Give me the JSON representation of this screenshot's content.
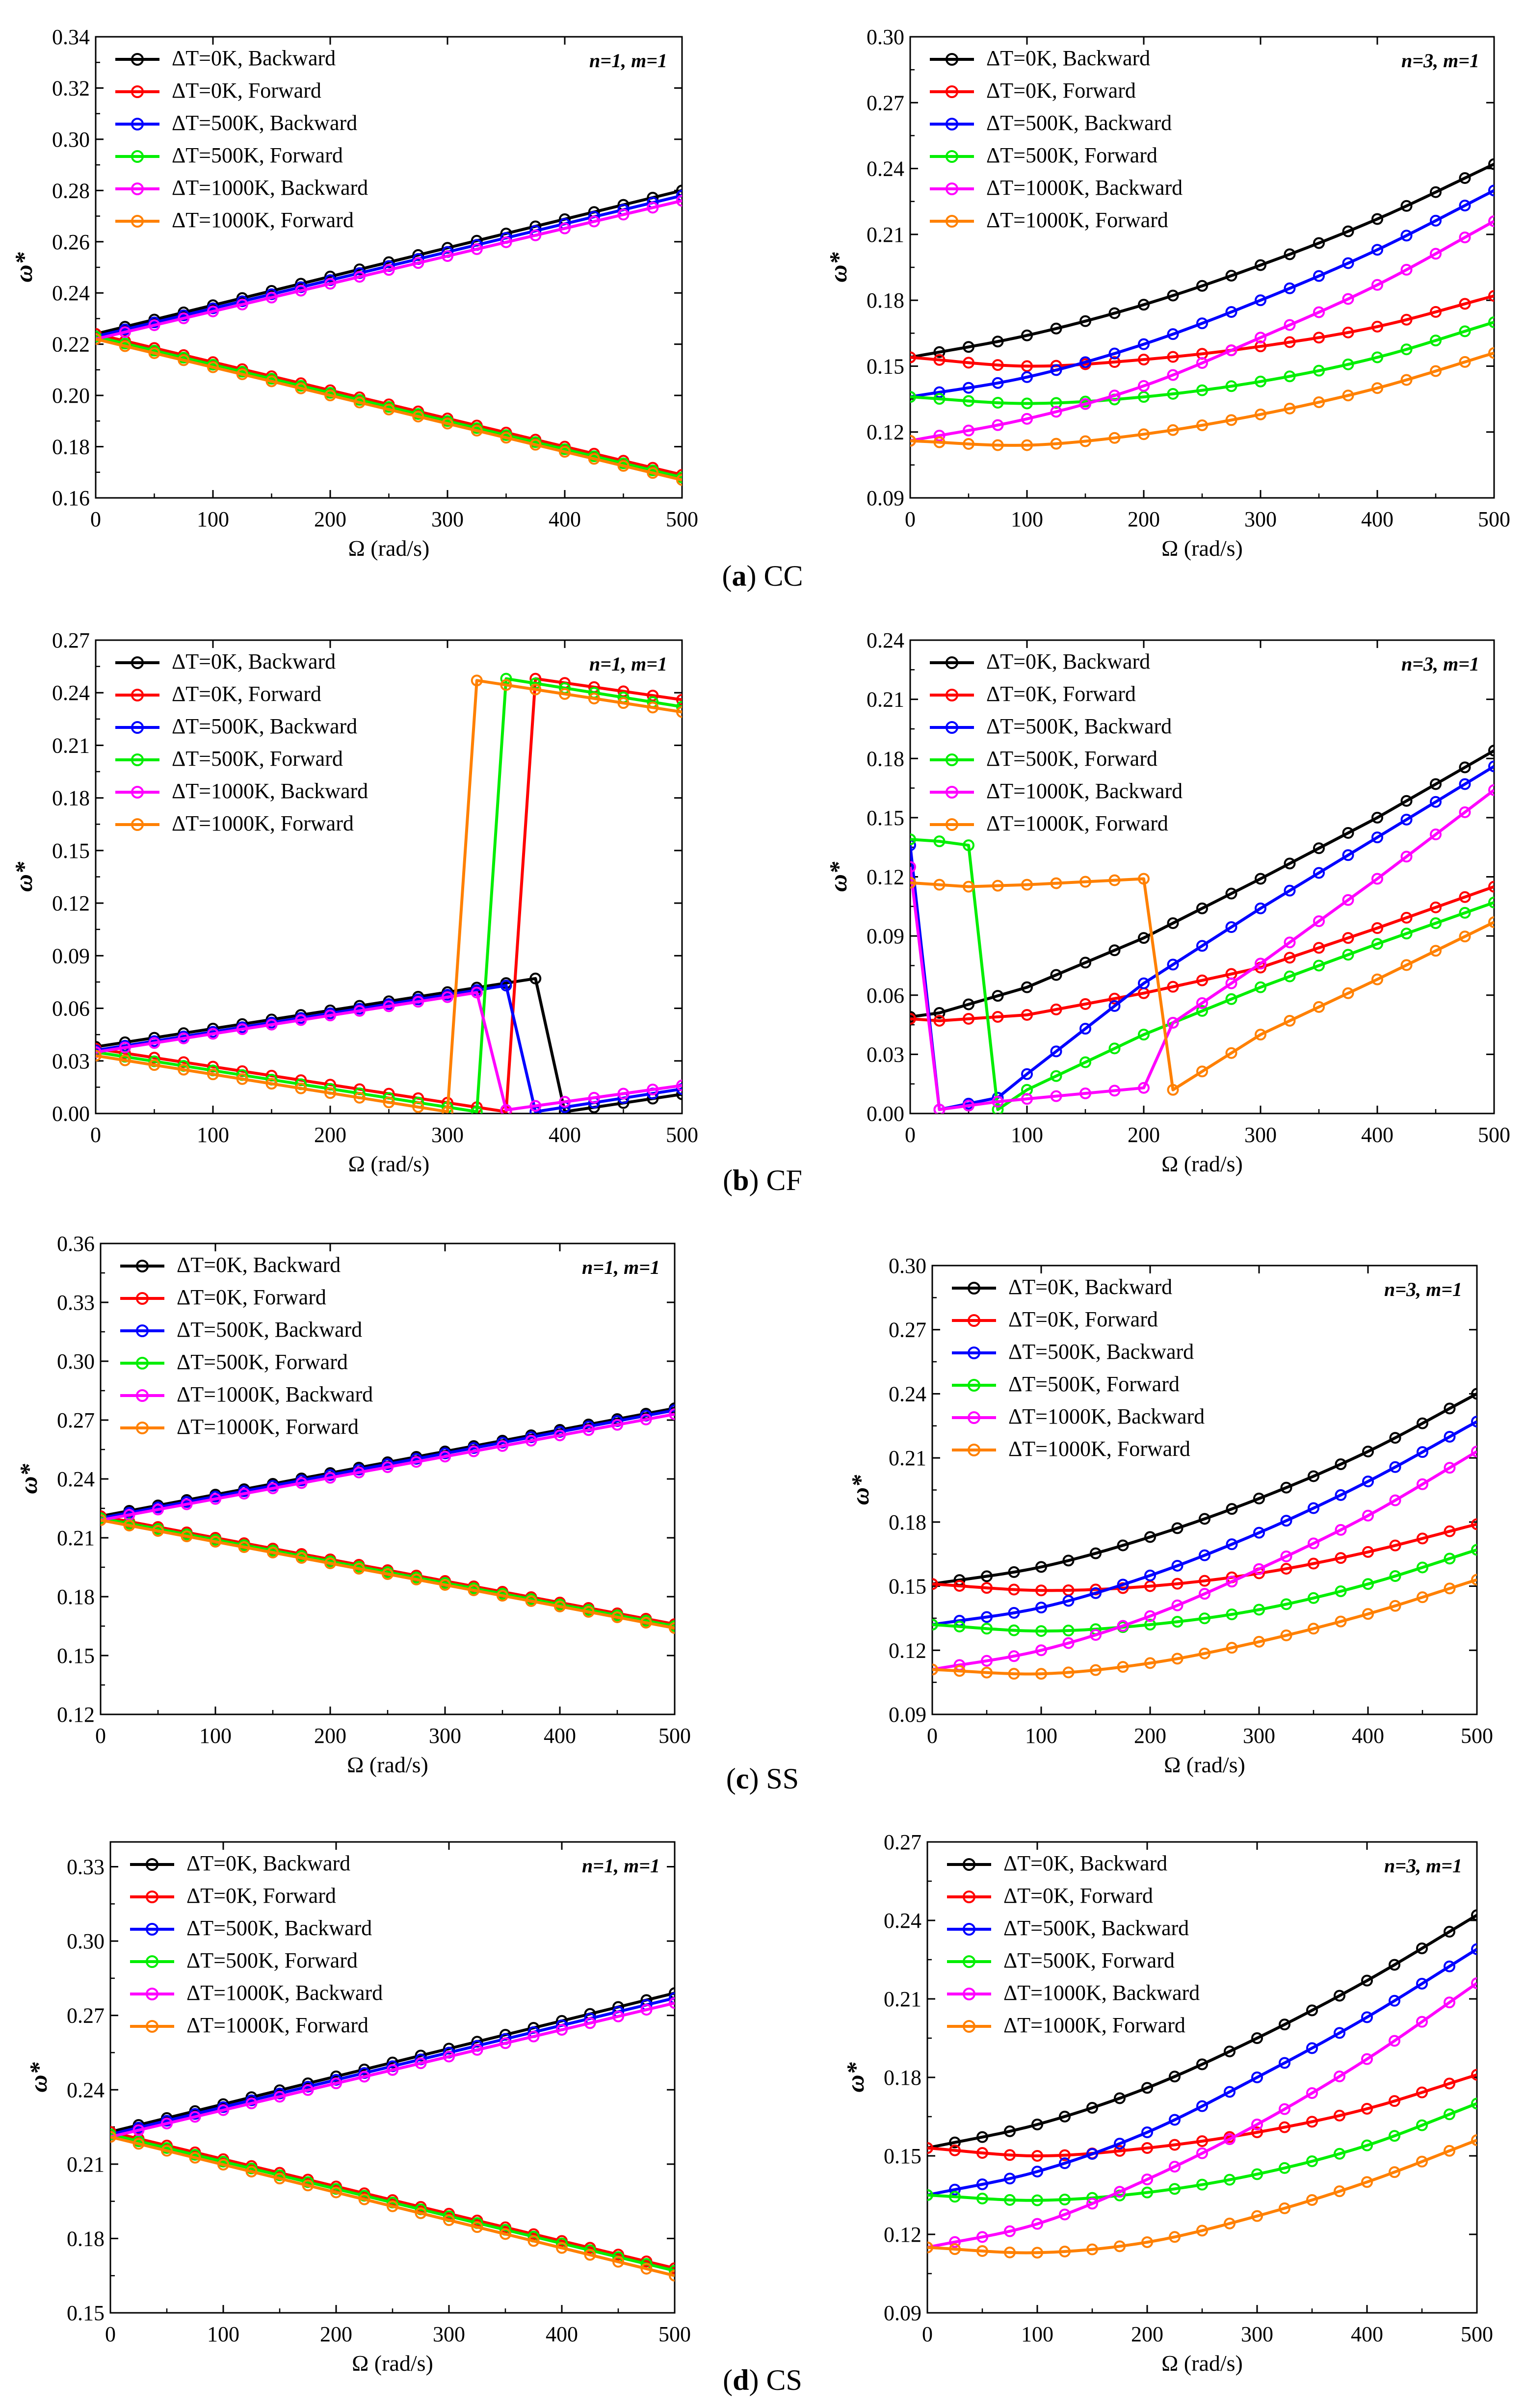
{
  "captions": [
    {
      "letter": "a",
      "text": "CC"
    },
    {
      "letter": "b",
      "text": "CF"
    },
    {
      "letter": "c",
      "text": "SS"
    },
    {
      "letter": "d",
      "text": "CS"
    }
  ],
  "chart_data": [
    {
      "id": "a-left",
      "type": "line",
      "xlabel": "Ω (rad/s)",
      "ylabel": "ω*",
      "xlim": [
        0,
        500
      ],
      "ylim": [
        0.16,
        0.34
      ],
      "xticks": [
        0,
        100,
        200,
        300,
        400,
        500
      ],
      "yticks": [
        0.16,
        0.18,
        0.2,
        0.22,
        0.24,
        0.26,
        0.28,
        0.3,
        0.32,
        0.34
      ],
      "ydec": 2,
      "mode": "n=1, m=1",
      "legend_position": "top-left",
      "series": [
        {
          "name": "ΔT=0K,  Backward",
          "color": "#000000",
          "x": [
            0,
            500
          ],
          "y": [
            0.224,
            0.28
          ]
        },
        {
          "name": "ΔT=0K,  Forward",
          "color": "#ff0000",
          "x": [
            0,
            500
          ],
          "y": [
            0.224,
            0.169
          ]
        },
        {
          "name": "ΔT=500K,  Backward",
          "color": "#0000ff",
          "x": [
            0,
            500
          ],
          "y": [
            0.223,
            0.278
          ]
        },
        {
          "name": "ΔT=500K,  Forward",
          "color": "#00ee00",
          "x": [
            0,
            500
          ],
          "y": [
            0.223,
            0.168
          ]
        },
        {
          "name": "ΔT=1000K,  Backward",
          "color": "#ff00ff",
          "x": [
            0,
            500
          ],
          "y": [
            0.222,
            0.276
          ]
        },
        {
          "name": "ΔT=1000K,  Forward",
          "color": "#ff8000",
          "x": [
            0,
            500
          ],
          "y": [
            0.222,
            0.167
          ]
        }
      ]
    },
    {
      "id": "a-right",
      "type": "line",
      "xlabel": "Ω (rad/s)",
      "ylabel": "ω*",
      "xlim": [
        0,
        500
      ],
      "ylim": [
        0.09,
        0.3
      ],
      "xticks": [
        0,
        100,
        200,
        300,
        400,
        500
      ],
      "yticks": [
        0.09,
        0.12,
        0.15,
        0.18,
        0.21,
        0.24,
        0.27,
        0.3
      ],
      "ydec": 2,
      "mode": "n=3, m=1",
      "legend_position": "top-left",
      "series": [
        {
          "name": "ΔT=0K,  Backward",
          "color": "#000000",
          "x": [
            0,
            100,
            200,
            300,
            400,
            500
          ],
          "y": [
            0.154,
            0.164,
            0.178,
            0.196,
            0.217,
            0.242
          ]
        },
        {
          "name": "ΔT=0K,  Forward",
          "color": "#ff0000",
          "x": [
            0,
            100,
            200,
            300,
            400,
            500
          ],
          "y": [
            0.154,
            0.15,
            0.153,
            0.159,
            0.168,
            0.182
          ]
        },
        {
          "name": "ΔT=500K,  Backward",
          "color": "#0000ff",
          "x": [
            0,
            100,
            200,
            300,
            400,
            500
          ],
          "y": [
            0.136,
            0.145,
            0.16,
            0.18,
            0.203,
            0.23
          ]
        },
        {
          "name": "ΔT=500K,  Forward",
          "color": "#00ee00",
          "x": [
            0,
            100,
            200,
            300,
            400,
            500
          ],
          "y": [
            0.136,
            0.133,
            0.136,
            0.143,
            0.154,
            0.17
          ]
        },
        {
          "name": "ΔT=1000K,  Backward",
          "color": "#ff00ff",
          "x": [
            0,
            100,
            200,
            300,
            400,
            500
          ],
          "y": [
            0.116,
            0.126,
            0.141,
            0.163,
            0.187,
            0.216
          ]
        },
        {
          "name": "ΔT=1000K,  Forward",
          "color": "#ff8000",
          "x": [
            0,
            100,
            200,
            300,
            400,
            500
          ],
          "y": [
            0.116,
            0.114,
            0.119,
            0.128,
            0.14,
            0.156
          ]
        }
      ]
    },
    {
      "id": "b-left",
      "type": "line",
      "xlabel": "Ω (rad/s)",
      "ylabel": "ω*",
      "xlim": [
        0,
        500
      ],
      "ylim": [
        0.0,
        0.27
      ],
      "xticks": [
        0,
        100,
        200,
        300,
        400,
        500
      ],
      "yticks": [
        0.0,
        0.03,
        0.06,
        0.09,
        0.12,
        0.15,
        0.18,
        0.21,
        0.24,
        0.27
      ],
      "ydec": 2,
      "mode": "n=1, m=1",
      "legend_position": "top-left",
      "series": [
        {
          "name": "ΔT=0K,  Backward",
          "color": "#000000",
          "x": [
            0,
            375,
            400,
            500
          ],
          "y": [
            0.038,
            0.077,
            0.001,
            0.011
          ]
        },
        {
          "name": "ΔT=0K,  Forward",
          "color": "#ff0000",
          "x": [
            0,
            350,
            375,
            500
          ],
          "y": [
            0.037,
            0.001,
            0.248,
            0.236
          ]
        },
        {
          "name": "ΔT=500K,  Backward",
          "color": "#0000ff",
          "x": [
            0,
            350,
            375,
            500
          ],
          "y": [
            0.036,
            0.073,
            0.001,
            0.014
          ]
        },
        {
          "name": "ΔT=500K,  Forward",
          "color": "#00ee00",
          "x": [
            0,
            325,
            350,
            500
          ],
          "y": [
            0.035,
            0.001,
            0.248,
            0.232
          ]
        },
        {
          "name": "ΔT=1000K,  Backward",
          "color": "#ff00ff",
          "x": [
            0,
            325,
            350,
            500
          ],
          "y": [
            0.035,
            0.069,
            0.002,
            0.016
          ]
        },
        {
          "name": "ΔT=1000K,  Forward",
          "color": "#ff8000",
          "x": [
            0,
            300,
            325,
            500
          ],
          "y": [
            0.033,
            0.001,
            0.247,
            0.229
          ]
        }
      ]
    },
    {
      "id": "b-right",
      "type": "line",
      "xlabel": "Ω (rad/s)",
      "ylabel": "ω*",
      "xlim": [
        0,
        500
      ],
      "ylim": [
        0.0,
        0.24
      ],
      "xticks": [
        0,
        100,
        200,
        300,
        400,
        500
      ],
      "yticks": [
        0.0,
        0.03,
        0.06,
        0.09,
        0.12,
        0.15,
        0.18,
        0.21,
        0.24
      ],
      "ydec": 2,
      "mode": "n=3, m=1",
      "legend_position": "top-left",
      "series": [
        {
          "name": "ΔT=0K,  Backward",
          "color": "#000000",
          "x": [
            0,
            25,
            100,
            200,
            300,
            400,
            500
          ],
          "y": [
            0.049,
            0.051,
            0.064,
            0.089,
            0.119,
            0.15,
            0.184
          ]
        },
        {
          "name": "ΔT=0K,  Forward",
          "color": "#ff0000",
          "x": [
            0,
            25,
            100,
            200,
            300,
            400,
            500
          ],
          "y": [
            0.048,
            0.047,
            0.05,
            0.061,
            0.074,
            0.094,
            0.115
          ]
        },
        {
          "name": "ΔT=500K,  Backward",
          "color": "#0000ff",
          "x": [
            0,
            25,
            75,
            100,
            200,
            300,
            400,
            500
          ],
          "y": [
            0.136,
            0.002,
            0.008,
            0.02,
            0.066,
            0.104,
            0.14,
            0.176
          ]
        },
        {
          "name": "ΔT=500K,  Forward",
          "color": "#00ee00",
          "x": [
            0,
            25,
            50,
            75,
            100,
            200,
            300,
            400,
            500
          ],
          "y": [
            0.139,
            0.138,
            0.136,
            0.002,
            0.012,
            0.04,
            0.064,
            0.086,
            0.107
          ]
        },
        {
          "name": "ΔT=1000K,  Backward",
          "color": "#ff00ff",
          "x": [
            0,
            25,
            75,
            200,
            225,
            300,
            400,
            500
          ],
          "y": [
            0.125,
            0.002,
            0.006,
            0.013,
            0.046,
            0.076,
            0.119,
            0.164
          ]
        },
        {
          "name": "ΔT=1000K,  Forward",
          "color": "#ff8000",
          "x": [
            0,
            50,
            100,
            200,
            225,
            300,
            400,
            500
          ],
          "y": [
            0.117,
            0.115,
            0.116,
            0.119,
            0.012,
            0.04,
            0.068,
            0.097
          ]
        }
      ]
    },
    {
      "id": "c-left",
      "type": "line",
      "xlabel": "Ω (rad/s)",
      "ylabel": "ω*",
      "xlim": [
        0,
        500
      ],
      "ylim": [
        0.12,
        0.36
      ],
      "xticks": [
        0,
        100,
        200,
        300,
        400,
        500
      ],
      "yticks": [
        0.12,
        0.15,
        0.18,
        0.21,
        0.24,
        0.27,
        0.3,
        0.33,
        0.36
      ],
      "ydec": 2,
      "mode": "n=1, m=1",
      "legend_position": "top-left",
      "series": [
        {
          "name": "ΔT=0K,  Backward",
          "color": "#000000",
          "x": [
            0,
            500
          ],
          "y": [
            0.221,
            0.276
          ]
        },
        {
          "name": "ΔT=0K,  Forward",
          "color": "#ff0000",
          "x": [
            0,
            500
          ],
          "y": [
            0.221,
            0.166
          ]
        },
        {
          "name": "ΔT=500K,  Backward",
          "color": "#0000ff",
          "x": [
            0,
            500
          ],
          "y": [
            0.22,
            0.275
          ]
        },
        {
          "name": "ΔT=500K,  Forward",
          "color": "#00ee00",
          "x": [
            0,
            500
          ],
          "y": [
            0.22,
            0.165
          ]
        },
        {
          "name": "ΔT=1000K,  Backward",
          "color": "#ff00ff",
          "x": [
            0,
            500
          ],
          "y": [
            0.219,
            0.273
          ]
        },
        {
          "name": "ΔT=1000K,  Forward",
          "color": "#ff8000",
          "x": [
            0,
            500
          ],
          "y": [
            0.219,
            0.164
          ]
        }
      ]
    },
    {
      "id": "c-right",
      "type": "line",
      "xlabel": "Ω (rad/s)",
      "ylabel": "ω*",
      "xlim": [
        0,
        500
      ],
      "ylim": [
        0.09,
        0.3
      ],
      "xticks": [
        0,
        100,
        200,
        300,
        400,
        500
      ],
      "yticks": [
        0.09,
        0.12,
        0.15,
        0.18,
        0.21,
        0.24,
        0.27,
        0.3
      ],
      "ydec": 2,
      "mode": "n=3, m=1",
      "legend_position": "top-left",
      "series": [
        {
          "name": "ΔT=0K,  Backward",
          "color": "#000000",
          "x": [
            0,
            100,
            200,
            300,
            400,
            500
          ],
          "y": [
            0.151,
            0.159,
            0.173,
            0.191,
            0.213,
            0.24
          ]
        },
        {
          "name": "ΔT=0K,  Forward",
          "color": "#ff0000",
          "x": [
            0,
            100,
            200,
            300,
            400,
            500
          ],
          "y": [
            0.151,
            0.148,
            0.15,
            0.156,
            0.166,
            0.179
          ]
        },
        {
          "name": "ΔT=500K,  Backward",
          "color": "#0000ff",
          "x": [
            0,
            100,
            200,
            300,
            400,
            500
          ],
          "y": [
            0.132,
            0.14,
            0.155,
            0.175,
            0.199,
            0.227
          ]
        },
        {
          "name": "ΔT=500K,  Forward",
          "color": "#00ee00",
          "x": [
            0,
            100,
            200,
            300,
            400,
            500
          ],
          "y": [
            0.132,
            0.129,
            0.132,
            0.139,
            0.151,
            0.167
          ]
        },
        {
          "name": "ΔT=1000K,  Backward",
          "color": "#ff00ff",
          "x": [
            0,
            100,
            200,
            300,
            400,
            500
          ],
          "y": [
            0.111,
            0.12,
            0.136,
            0.158,
            0.183,
            0.213
          ]
        },
        {
          "name": "ΔT=1000K,  Forward",
          "color": "#ff8000",
          "x": [
            0,
            100,
            200,
            300,
            400,
            500
          ],
          "y": [
            0.111,
            0.109,
            0.114,
            0.124,
            0.137,
            0.153
          ]
        }
      ]
    },
    {
      "id": "d-left",
      "type": "line",
      "xlabel": "Ω (rad/s)",
      "ylabel": "ω*",
      "xlim": [
        0,
        500
      ],
      "ylim": [
        0.15,
        0.34
      ],
      "xticks": [
        0,
        100,
        200,
        300,
        400,
        500
      ],
      "yticks": [
        0.15,
        0.18,
        0.21,
        0.24,
        0.27,
        0.3,
        0.33
      ],
      "ydec": 2,
      "mode": "n=1, m=1",
      "legend_position": "top-left",
      "series": [
        {
          "name": "ΔT=0K,  Backward",
          "color": "#000000",
          "x": [
            0,
            500
          ],
          "y": [
            0.223,
            0.279
          ]
        },
        {
          "name": "ΔT=0K,  Forward",
          "color": "#ff0000",
          "x": [
            0,
            500
          ],
          "y": [
            0.223,
            0.168
          ]
        },
        {
          "name": "ΔT=500K,  Backward",
          "color": "#0000ff",
          "x": [
            0,
            500
          ],
          "y": [
            0.222,
            0.277
          ]
        },
        {
          "name": "ΔT=500K,  Forward",
          "color": "#00ee00",
          "x": [
            0,
            500
          ],
          "y": [
            0.222,
            0.167
          ]
        },
        {
          "name": "ΔT=1000K,  Backward",
          "color": "#ff00ff",
          "x": [
            0,
            500
          ],
          "y": [
            0.221,
            0.275
          ]
        },
        {
          "name": "ΔT=1000K,  Forward",
          "color": "#ff8000",
          "x": [
            0,
            500
          ],
          "y": [
            0.221,
            0.165
          ]
        }
      ]
    },
    {
      "id": "d-right",
      "type": "line",
      "xlabel": "Ω (rad/s)",
      "ylabel": "ω*",
      "xlim": [
        0,
        500
      ],
      "ylim": [
        0.09,
        0.27
      ],
      "xticks": [
        0,
        100,
        200,
        300,
        400,
        500
      ],
      "yticks": [
        0.09,
        0.12,
        0.15,
        0.18,
        0.21,
        0.24,
        0.27
      ],
      "ydec": 2,
      "mode": "n=3, m=1",
      "legend_position": "top-left",
      "series": [
        {
          "name": "ΔT=0K,  Backward",
          "color": "#000000",
          "x": [
            0,
            100,
            200,
            300,
            400,
            500
          ],
          "y": [
            0.153,
            0.162,
            0.176,
            0.195,
            0.217,
            0.242
          ]
        },
        {
          "name": "ΔT=0K,  Forward",
          "color": "#ff0000",
          "x": [
            0,
            100,
            200,
            300,
            400,
            500
          ],
          "y": [
            0.153,
            0.15,
            0.153,
            0.159,
            0.168,
            0.181
          ]
        },
        {
          "name": "ΔT=500K,  Backward",
          "color": "#0000ff",
          "x": [
            0,
            100,
            200,
            300,
            400,
            500
          ],
          "y": [
            0.135,
            0.144,
            0.159,
            0.18,
            0.203,
            0.229
          ]
        },
        {
          "name": "ΔT=500K,  Forward",
          "color": "#00ee00",
          "x": [
            0,
            100,
            200,
            300,
            400,
            500
          ],
          "y": [
            0.135,
            0.133,
            0.136,
            0.143,
            0.154,
            0.17
          ]
        },
        {
          "name": "ΔT=1000K,  Backward",
          "color": "#ff00ff",
          "x": [
            0,
            100,
            200,
            300,
            400,
            500
          ],
          "y": [
            0.115,
            0.124,
            0.141,
            0.162,
            0.187,
            0.216
          ]
        },
        {
          "name": "ΔT=1000K,  Forward",
          "color": "#ff8000",
          "x": [
            0,
            100,
            200,
            300,
            400,
            500
          ],
          "y": [
            0.115,
            0.113,
            0.117,
            0.127,
            0.14,
            0.156
          ]
        }
      ]
    }
  ]
}
